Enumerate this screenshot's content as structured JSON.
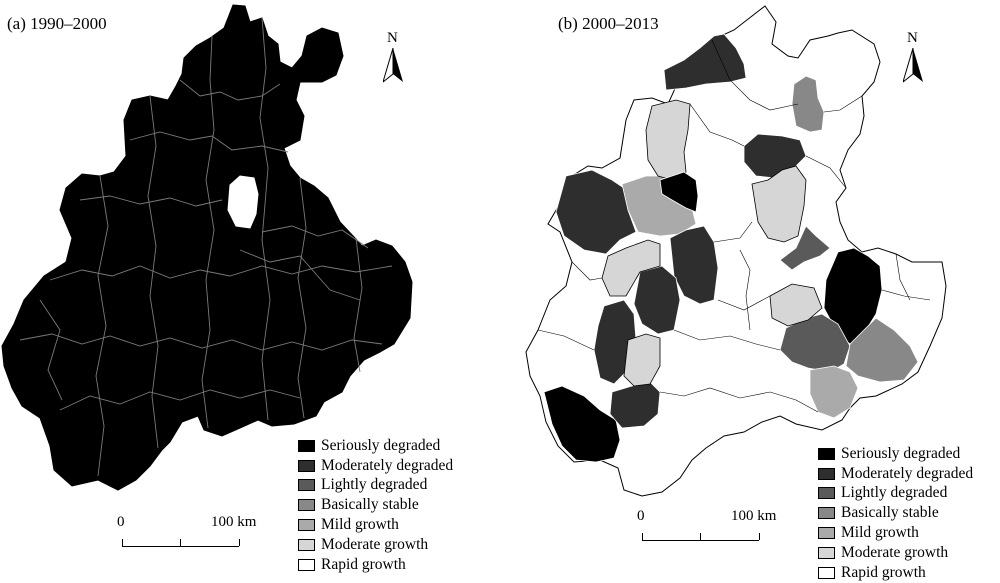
{
  "panels": [
    {
      "title": "(a) 1990–2000",
      "north_label": "N",
      "scale_zero": "0",
      "scale_max": "100 km"
    },
    {
      "title": "(b) 2000–2013",
      "north_label": "N",
      "scale_zero": "0",
      "scale_max": "100 km"
    }
  ],
  "legend": [
    {
      "label": "Seriously degraded",
      "color": "#000000"
    },
    {
      "label": "Moderately degraded",
      "color": "#2e2e2e"
    },
    {
      "label": "Lightly degraded",
      "color": "#5a5a5a"
    },
    {
      "label": "Basically stable",
      "color": "#888888"
    },
    {
      "label": "Mild growth",
      "color": "#aaaaaa"
    },
    {
      "label": "Moderate growth",
      "color": "#d6d6d6"
    },
    {
      "label": "Rapid growth",
      "color": "#ffffff"
    }
  ],
  "map_classes": {
    "panel_a_fill": "Seriously degraded",
    "panel_b_regions": [
      "Moderately degraded",
      "Mild growth",
      "Moderate growth",
      "Moderately degraded",
      "Seriously degraded",
      "Basically stable",
      "Moderately degraded",
      "Moderate growth",
      "Moderately degraded",
      "Moderately degraded",
      "Moderately degraded",
      "Moderate growth",
      "Seriously degraded",
      "Moderately degraded",
      "Moderately degraded",
      "Seriously degraded",
      "Lightly degraded",
      "Basically stable",
      "Mild growth",
      "Moderate growth",
      "Lightly degraded"
    ]
  }
}
